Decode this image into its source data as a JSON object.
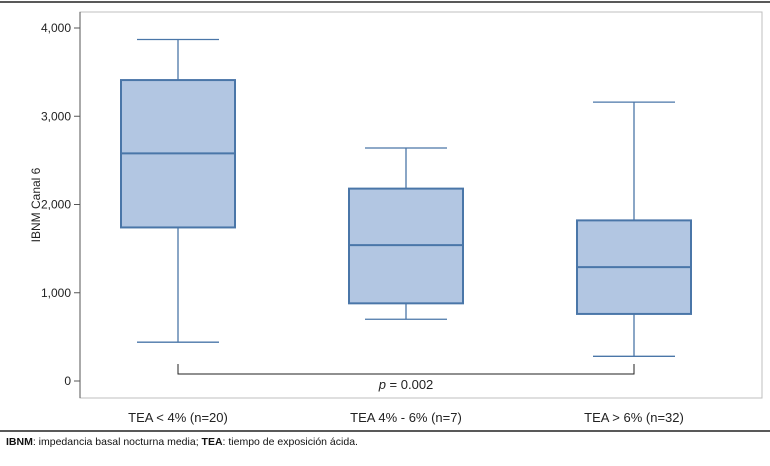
{
  "chart_data": {
    "type": "boxplot",
    "ylabel": "IBNM Canal 6",
    "ylim": [
      0,
      4000
    ],
    "yticks": [
      0,
      1000,
      2000,
      3000,
      4000
    ],
    "ytick_labels": [
      "0",
      "1,000",
      "2,000",
      "3,000",
      "4,000"
    ],
    "categories": [
      "TEA < 4% (n=20)",
      "TEA 4% - 6% (n=7)",
      "TEA > 6% (n=32)"
    ],
    "boxes": [
      {
        "whisker_low": 440,
        "q1": 1740,
        "median": 2580,
        "q3": 3410,
        "whisker_high": 3870
      },
      {
        "whisker_low": 700,
        "q1": 880,
        "median": 1540,
        "q3": 2180,
        "whisker_high": 2640
      },
      {
        "whisker_low": 280,
        "q1": 760,
        "median": 1290,
        "q3": 1820,
        "whisker_high": 3160
      }
    ],
    "annotation": {
      "prefix": "p",
      "text": " = 0.002"
    },
    "colors": {
      "box_fill": "#b2c6e2",
      "box_stroke": "#4a76a8",
      "plot_border": "#bfbfbf",
      "bracket": "#222222"
    }
  },
  "footnote": {
    "term1": "IBNM",
    "def1": ": impedancia basal nocturna media; ",
    "term2": "TEA",
    "def2": ": tiempo de exposición ácida."
  }
}
